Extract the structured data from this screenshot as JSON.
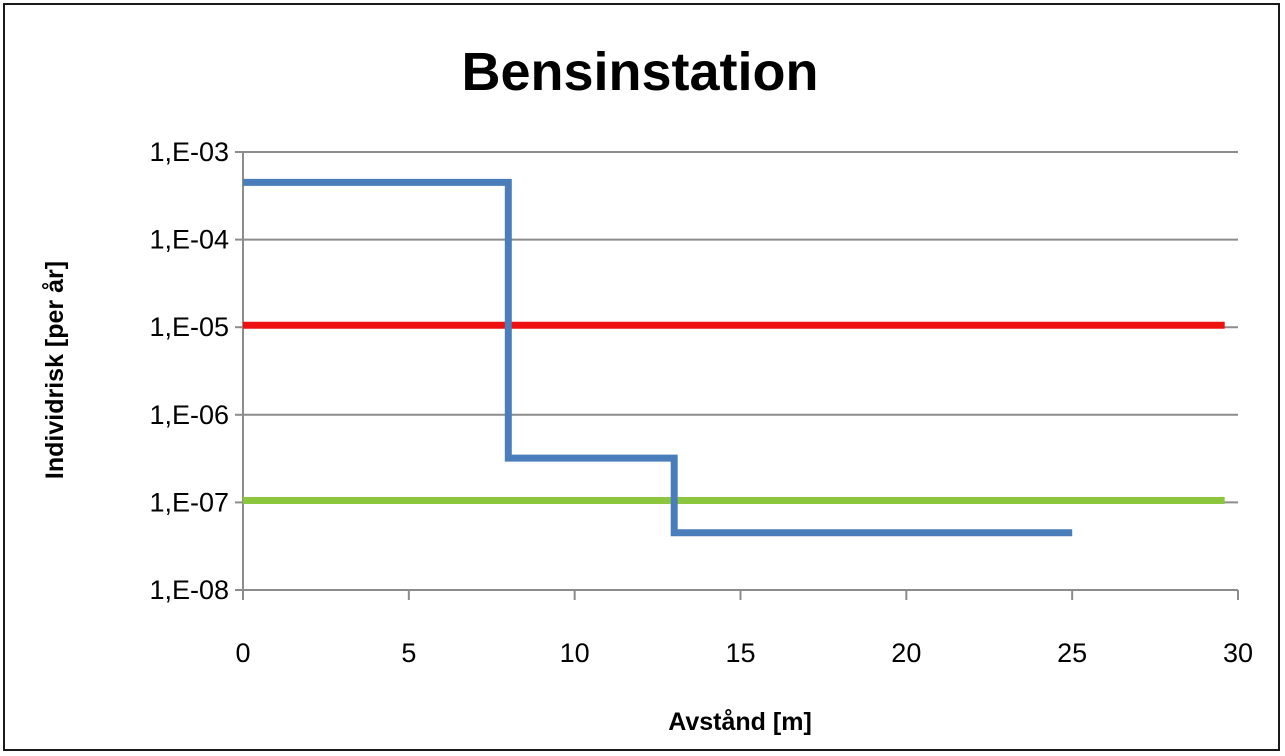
{
  "chart_data": {
    "type": "line",
    "title": "Bensinstation",
    "xlabel": "Avstånd [m]",
    "ylabel": "Individrisk [per år]",
    "xlim": [
      0,
      30
    ],
    "ylim": [
      1e-08,
      0.001
    ],
    "yscale": "log",
    "grid": true,
    "x_ticks": [
      {
        "value": 0,
        "label": "0"
      },
      {
        "value": 5,
        "label": "5"
      },
      {
        "value": 10,
        "label": "10"
      },
      {
        "value": 15,
        "label": "15"
      },
      {
        "value": 20,
        "label": "20"
      },
      {
        "value": 25,
        "label": "25"
      },
      {
        "value": 30,
        "label": "30"
      }
    ],
    "y_ticks": [
      {
        "value": 0.001,
        "label": "1,E-03"
      },
      {
        "value": 0.0001,
        "label": "1,E-04"
      },
      {
        "value": 1e-05,
        "label": "1,E-05"
      },
      {
        "value": 1e-06,
        "label": "1,E-06"
      },
      {
        "value": 1e-07,
        "label": "1,E-07"
      },
      {
        "value": 1e-08,
        "label": "1,E-08"
      }
    ],
    "series": [
      {
        "color": "#4a7ebb",
        "x": [
          0,
          8,
          8,
          13,
          13,
          25
        ],
        "y": [
          0.00045,
          0.00045,
          3.2e-07,
          3.2e-07,
          4.5e-08,
          4.5e-08
        ]
      },
      {
        "color": "#ee1111",
        "x": [
          0,
          29.6
        ],
        "y": [
          1.05e-05,
          1.05e-05
        ]
      },
      {
        "color": "#8cc63f",
        "x": [
          0,
          29.6
        ],
        "y": [
          1.05e-07,
          1.05e-07
        ]
      }
    ]
  }
}
